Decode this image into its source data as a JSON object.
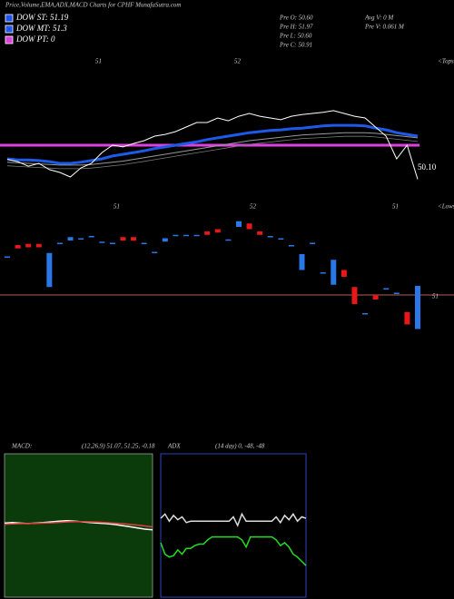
{
  "header": {
    "title": "Price,Volume,EMA,ADX,MACD Charts for CPHF MunafaSutra.com"
  },
  "legend": [
    {
      "label": "DOW ST: 51.19",
      "color": "#2255ee"
    },
    {
      "label": "DOW MT: 51.3",
      "color": "#2255ee"
    },
    {
      "label": "DOW PT: 0",
      "color": "#e040e0"
    }
  ],
  "info": [
    "Pre  O: 50.60",
    "Pre  H: 51.97",
    "Pre  L: 50.60",
    "Pre  C: 50.91",
    "Avg V: 0  M",
    "Pre   V: 0.061 M"
  ],
  "chart_data": [
    {
      "type": "line",
      "ylim": [
        49.9,
        52.3
      ],
      "annotations": [
        "51",
        "52",
        "<Tops",
        "50.10"
      ],
      "level": {
        "value": 50.7,
        "color": "#e040e0"
      },
      "series": [
        {
          "color": "#999999",
          "values": [
            50.4,
            50.39,
            50.38,
            50.37,
            50.36,
            50.35,
            50.35,
            50.35,
            50.36,
            50.38,
            50.4,
            50.42,
            50.45,
            50.48,
            50.51,
            50.54,
            50.57,
            50.6,
            50.63,
            50.66,
            50.69,
            50.72,
            50.75,
            50.78,
            50.8,
            50.82,
            50.84,
            50.86,
            50.88,
            50.89,
            50.9,
            50.91,
            50.92,
            50.92,
            50.92,
            50.91,
            50.89,
            50.87,
            50.85,
            50.83
          ]
        },
        {
          "color": "#1e5ae8",
          "values": [
            50.46,
            50.44,
            50.44,
            50.43,
            50.41,
            50.38,
            50.38,
            50.4,
            50.43,
            50.46,
            50.51,
            50.54,
            50.57,
            50.6,
            50.64,
            50.67,
            50.7,
            50.73,
            50.76,
            50.8,
            50.83,
            50.86,
            50.89,
            50.92,
            50.94,
            50.96,
            50.97,
            50.99,
            51.0,
            51.02,
            51.04,
            51.05,
            51.05,
            51.05,
            51.04,
            51.0,
            50.97,
            50.92,
            50.89,
            50.86
          ]
        },
        {
          "color": "#ffffff",
          "values": [
            50.45,
            50.41,
            50.33,
            50.38,
            50.27,
            50.22,
            50.14,
            50.3,
            50.38,
            50.57,
            50.7,
            50.67,
            50.73,
            50.78,
            50.86,
            50.89,
            50.94,
            51.02,
            51.1,
            51.1,
            51.18,
            51.13,
            51.21,
            51.26,
            51.21,
            51.18,
            51.15,
            51.21,
            51.24,
            51.26,
            51.28,
            51.31,
            51.26,
            51.21,
            51.18,
            51.02,
            50.86,
            50.46,
            50.7,
            50.1
          ]
        }
      ]
    },
    {
      "type": "candlestick",
      "ylim": [
        50.4,
        51.76
      ],
      "annotations": [
        "51",
        "52",
        "51",
        "<Lows"
      ],
      "level": {
        "value": 51,
        "color": "#b06060"
      },
      "up_color": "#2a78e8",
      "down_color": "#e81818",
      "open": [
        51.34,
        51.44,
        51.45,
        51.45,
        51.07,
        51.46,
        51.48,
        51.5,
        51.52,
        51.47,
        51.46,
        51.51,
        51.51,
        51.46,
        51.38,
        51.47,
        51.53,
        51.53,
        51.53,
        51.56,
        51.58,
        51.49,
        51.6,
        51.63,
        51.56,
        51.52,
        51.5,
        51.44,
        51.22,
        51.46,
        51.2,
        51.09,
        51.22,
        51.07,
        50.84,
        51.0,
        51.06,
        51.02,
        50.85,
        50.7
      ],
      "close": [
        51.34,
        51.41,
        51.42,
        51.42,
        51.37,
        51.46,
        51.51,
        51.5,
        51.52,
        51.47,
        51.46,
        51.48,
        51.48,
        51.46,
        51.38,
        51.5,
        51.53,
        51.53,
        51.53,
        51.53,
        51.55,
        51.49,
        51.65,
        51.58,
        51.53,
        51.52,
        51.5,
        51.44,
        51.36,
        51.46,
        51.2,
        51.31,
        51.16,
        50.92,
        50.84,
        50.96,
        51.06,
        51.02,
        50.74,
        51.08
      ]
    },
    {
      "type": "line",
      "title": "MACD:",
      "subtitle": "(12,26,9) 51.07, 51.25, -0.18",
      "ylim": [
        -3,
        3
      ],
      "background": "#0b3a0b",
      "series": [
        {
          "color": "#ffffff",
          "values": [
            0.1,
            0.12,
            0.1,
            0.08,
            0.1,
            0.12,
            0.15,
            0.18,
            0.2,
            0.18,
            0.15,
            0.12,
            0.1,
            0.08,
            0.05,
            0.0,
            -0.05,
            -0.1,
            -0.15,
            -0.18
          ]
        },
        {
          "color": "#e04040",
          "values": [
            0.05,
            0.07,
            0.08,
            0.08,
            0.09,
            0.1,
            0.11,
            0.13,
            0.15,
            0.16,
            0.16,
            0.15,
            0.14,
            0.12,
            0.1,
            0.08,
            0.05,
            0.02,
            -0.02,
            -0.06
          ]
        }
      ]
    },
    {
      "type": "line",
      "title": "ADX",
      "subtitle": "(14 day) 0, -48, -48",
      "ylim": [
        0,
        100
      ],
      "border": "#3040c0",
      "series": [
        {
          "color": "#dddddd",
          "values": [
            55,
            58,
            53,
            57,
            54,
            56,
            52,
            53,
            53,
            53,
            53,
            53,
            53,
            53,
            53,
            53,
            53,
            56,
            50,
            58,
            53,
            53,
            53,
            53,
            53,
            53,
            53,
            56,
            52,
            57,
            54,
            58,
            53,
            56,
            55
          ]
        },
        {
          "color": "#22dd22",
          "values": [
            38,
            30,
            28,
            29,
            33,
            30,
            34,
            34,
            36,
            37,
            37,
            40,
            42,
            42,
            42,
            42,
            42,
            42,
            42,
            40,
            35,
            42,
            42,
            42,
            42,
            42,
            42,
            40,
            36,
            38,
            35,
            30,
            28,
            25,
            22
          ]
        }
      ]
    }
  ]
}
